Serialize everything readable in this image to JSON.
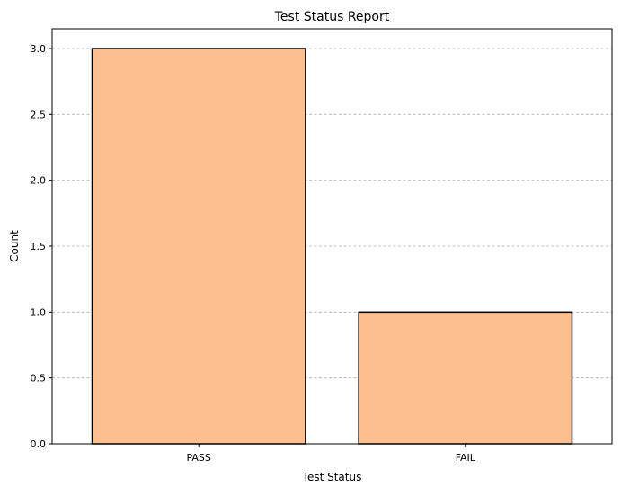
{
  "chart_data": {
    "type": "bar",
    "title": "Test Status Report",
    "xlabel": "Test Status",
    "ylabel": "Count",
    "categories": [
      "PASS",
      "FAIL"
    ],
    "values": [
      3,
      1
    ],
    "ylim": [
      0,
      3.15
    ],
    "yticks": [
      "0.0",
      "0.5",
      "1.0",
      "1.5",
      "2.0",
      "2.5",
      "3.0"
    ],
    "grid": "y-dashed",
    "legend": "none",
    "colors": {
      "bar_fill": "#fdbf8d",
      "bar_edge": "#000000",
      "grid": "#b0b0b0",
      "axes": "#000000"
    }
  }
}
